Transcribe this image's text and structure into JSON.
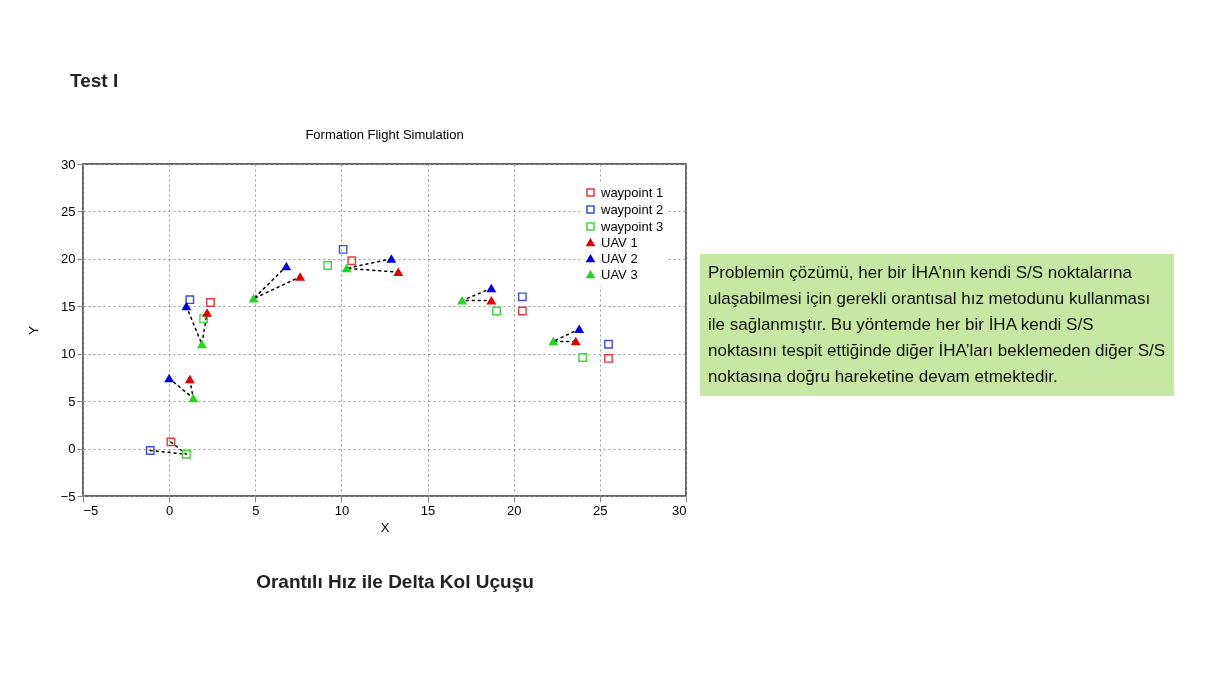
{
  "chart_data": {
    "type": "scatter",
    "title": "Formation Flight Simulation",
    "xlabel": "X",
    "ylabel": "Y",
    "annotations": [
      "Test I",
      "Orantılı Hız ile Delta Kol Uçuşu",
      "Problemin çözümü, her bir İHA’nın kendi S/S noktalarına ulaşabilmesi için gerekli orantısal hız metodunu kullanması ile sağlanmıştır. Bu yöntemde her bir İHA kendi S/S noktasını tespit ettiğinde diğer İHA’ları beklemeden diğer S/S noktasına doğru hareketine devam etmektedir."
    ],
    "xlim": [
      -5,
      30
    ],
    "xticks": [
      -5,
      0,
      5,
      10,
      15,
      20,
      25,
      30
    ],
    "ylim": [
      -5,
      30
    ],
    "yticks": [
      -5,
      0,
      5,
      10,
      15,
      20,
      25,
      30
    ],
    "grid": true,
    "legend": "top right",
    "series": [
      {
        "type": "line",
        "color": "#000000",
        "line_style": "dotted",
        "x": [
          -1.1,
          1.0,
          0.1
        ],
        "values": [
          -0.2,
          -0.6,
          0.7
        ]
      },
      {
        "type": "line",
        "color": "#000000",
        "line_style": "dotted",
        "x": [
          0.0,
          1.4,
          1.2
        ],
        "values": [
          7.4,
          5.3,
          7.3
        ]
      },
      {
        "type": "line",
        "color": "#000000",
        "line_style": "dotted",
        "x": [
          1.0,
          1.9,
          2.2
        ],
        "values": [
          15.0,
          11.0,
          14.3
        ]
      },
      {
        "type": "line",
        "color": "#000000",
        "line_style": "dotted",
        "x": [
          6.8,
          4.9,
          7.6
        ],
        "values": [
          19.2,
          15.8,
          18.1
        ]
      },
      {
        "type": "line",
        "color": "#000000",
        "line_style": "dotted",
        "x": [
          12.9,
          10.3,
          13.3
        ],
        "values": [
          20.0,
          19.0,
          18.6
        ]
      },
      {
        "type": "line",
        "color": "#000000",
        "line_style": "dotted",
        "x": [
          18.7,
          17.0,
          18.7
        ],
        "values": [
          16.9,
          15.6,
          15.6
        ]
      },
      {
        "type": "line",
        "color": "#000000",
        "line_style": "dotted",
        "x": [
          23.8,
          22.3,
          23.6
        ],
        "values": [
          12.6,
          11.3,
          11.3
        ]
      },
      {
        "name": "waypoint 1",
        "color": "#e03c3c",
        "marker": "square",
        "x": [
          0.1,
          2.4,
          10.6,
          20.5,
          25.5
        ],
        "values": [
          0.7,
          15.4,
          19.8,
          14.5,
          9.5
        ]
      },
      {
        "name": "waypoint 2",
        "color": "#3c4ce0",
        "marker": "square",
        "x": [
          -1.1,
          1.2,
          10.1,
          20.5,
          25.5
        ],
        "values": [
          -0.2,
          15.7,
          21.0,
          16.0,
          11.0
        ]
      },
      {
        "name": "waypoint 3",
        "color": "#3cd83c",
        "marker": "square",
        "x": [
          1.0,
          2.0,
          9.2,
          19.0,
          24.0
        ],
        "values": [
          -0.6,
          13.7,
          19.3,
          14.5,
          9.6
        ]
      },
      {
        "name": "UAV 1",
        "color": "#e00000",
        "marker": "triangle",
        "x": [
          1.2,
          2.2,
          7.6,
          13.3,
          18.7,
          23.6
        ],
        "values": [
          7.3,
          14.3,
          18.1,
          18.6,
          15.6,
          11.3
        ]
      },
      {
        "name": "UAV 2",
        "color": "#0000e0",
        "marker": "triangle",
        "x": [
          0.0,
          1.0,
          6.8,
          12.9,
          18.7,
          23.8
        ],
        "values": [
          7.4,
          15.0,
          19.2,
          20.0,
          16.9,
          12.6
        ]
      },
      {
        "name": "UAV 3",
        "color": "#20d820",
        "marker": "triangle",
        "x": [
          1.4,
          1.9,
          4.9,
          10.3,
          17.0,
          22.3
        ],
        "values": [
          5.3,
          11.0,
          15.8,
          19.0,
          15.6,
          11.3
        ]
      }
    ]
  }
}
